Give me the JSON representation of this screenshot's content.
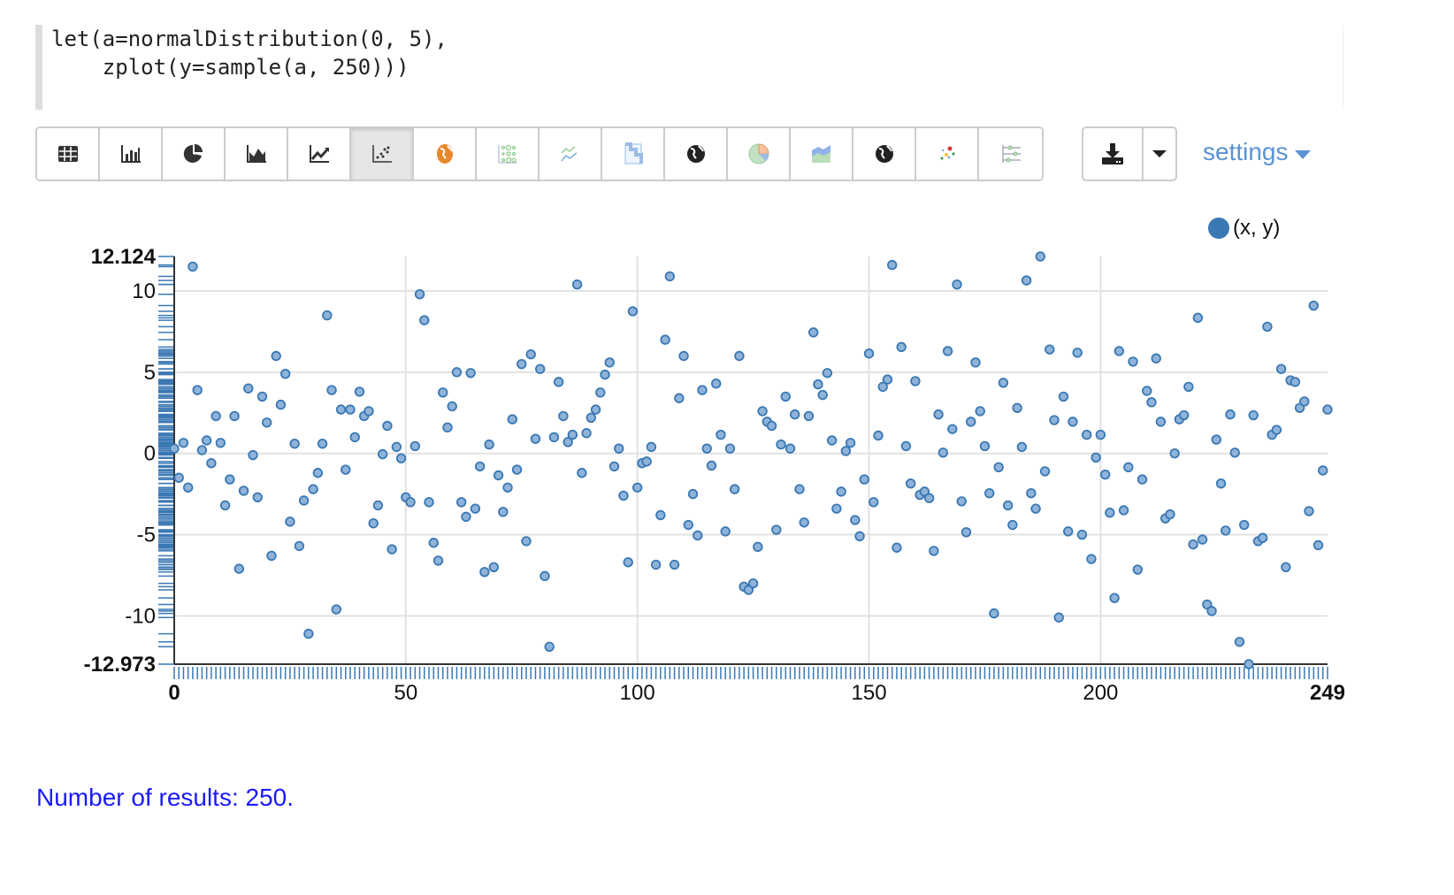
{
  "editor": {
    "code_lines": [
      "let(a=normalDistribution(0, 5),",
      "    zplot(y=sample(a, 250)))"
    ]
  },
  "toolbar": {
    "buttons": [
      {
        "icon": "table-icon"
      },
      {
        "icon": "bar-chart-icon"
      },
      {
        "icon": "pie-chart-icon"
      },
      {
        "icon": "area-chart-icon"
      },
      {
        "icon": "line-chart-icon"
      },
      {
        "icon": "scatter-chart-icon",
        "active": true
      },
      {
        "icon": "globe-orange-icon"
      },
      {
        "icon": "bubble-grid-icon"
      },
      {
        "icon": "multi-line-icon"
      },
      {
        "icon": "heatmap-icon"
      },
      {
        "icon": "globe-icon"
      },
      {
        "icon": "pie-color-icon"
      },
      {
        "icon": "stacked-area-icon"
      },
      {
        "icon": "globe-dark-icon"
      },
      {
        "icon": "color-dots-icon"
      },
      {
        "icon": "sliders-icon"
      }
    ],
    "download_icon": "download-icon",
    "dropdown_icon": "caret-down-icon",
    "settings_label": "settings"
  },
  "colors": {
    "accent": "#5b93d3",
    "point_fill": "#8fb3d9",
    "point_stroke": "#3a78b4",
    "results_text": "#1a1aff"
  },
  "chart_data": {
    "type": "scatter",
    "legend": {
      "entries": [
        "(x, y)"
      ],
      "placement": "top-right"
    },
    "xlim": [
      0,
      249
    ],
    "ylim": [
      -12.973,
      12.124
    ],
    "x_ticks": [
      "0",
      "50",
      "100",
      "150",
      "200",
      "249"
    ],
    "y_ticks": [
      "12.124",
      "10",
      "5",
      "0",
      "-5",
      "-10",
      "-12.973"
    ],
    "grid": true,
    "rug": true,
    "series": [
      {
        "name": "(x, y)",
        "y": [
          0.3,
          -1.5,
          0.65,
          -2.1,
          11.5,
          3.9,
          0.2,
          0.8,
          -0.6,
          2.3,
          0.65,
          -3.2,
          -1.6,
          2.3,
          -7.1,
          -2.3,
          4.0,
          -0.1,
          -2.7,
          3.5,
          1.9,
          -6.3,
          6.0,
          3.0,
          4.9,
          -4.2,
          0.6,
          -5.7,
          -2.9,
          -11.1,
          -2.2,
          -1.2,
          0.6,
          8.5,
          3.9,
          -9.6,
          2.7,
          -1.0,
          2.7,
          1.0,
          3.8,
          2.3,
          2.6,
          -4.3,
          -3.2,
          -0.05,
          1.7,
          -5.9,
          0.4,
          -0.3,
          -2.7,
          -3.0,
          0.45,
          9.8,
          8.2,
          -3.0,
          -5.5,
          -6.6,
          3.75,
          1.6,
          2.9,
          5.0,
          -3.0,
          -3.9,
          4.95,
          -3.4,
          -0.8,
          -7.3,
          0.55,
          -7.0,
          -1.35,
          -3.6,
          -2.1,
          2.1,
          -1.0,
          5.5,
          -5.4,
          6.1,
          0.9,
          5.2,
          -7.55,
          -11.9,
          1.0,
          4.4,
          2.3,
          0.7,
          1.15,
          10.4,
          -1.2,
          1.25,
          2.2,
          2.7,
          3.75,
          4.85,
          5.6,
          -0.8,
          0.3,
          -2.6,
          -6.7,
          8.75,
          -2.1,
          -0.6,
          -0.5,
          0.4,
          -6.85,
          -3.8,
          7.0,
          10.9,
          -6.85,
          3.4,
          6.0,
          -4.4,
          -2.5,
          -5.05,
          3.9,
          0.3,
          -0.75,
          4.3,
          1.15,
          -4.8,
          0.3,
          -2.2,
          6.0,
          -8.2,
          -8.4,
          -8.0,
          -5.75,
          2.6,
          1.95,
          1.7,
          -4.7,
          0.55,
          3.5,
          0.3,
          2.4,
          -2.2,
          -4.25,
          2.3,
          7.45,
          4.25,
          3.6,
          4.95,
          0.8,
          -3.4,
          -2.35,
          0.15,
          0.65,
          -4.1,
          -5.1,
          -1.6,
          6.15,
          -3.0,
          1.1,
          4.1,
          4.55,
          11.6,
          -5.8,
          6.55,
          0.45,
          -1.85,
          4.45,
          -2.55,
          -2.35,
          -2.75,
          -6.0,
          2.4,
          0.05,
          6.3,
          1.5,
          10.4,
          -2.95,
          -4.85,
          1.95,
          5.6,
          2.6,
          0.45,
          -2.45,
          -9.85,
          -0.85,
          4.35,
          -3.2,
          -4.4,
          2.8,
          0.4,
          10.65,
          -2.45,
          -3.4,
          12.124,
          -1.1,
          6.4,
          2.05,
          -10.1,
          3.5,
          -4.8,
          1.95,
          6.2,
          -5.0,
          1.15,
          -6.5,
          -0.25,
          1.15,
          -1.3,
          -3.65,
          -8.9,
          6.3,
          -3.5,
          -0.85,
          5.65,
          -7.15,
          -1.6,
          3.85,
          3.15,
          5.85,
          1.95,
          -4.0,
          -3.75,
          0.0,
          2.1,
          2.35,
          4.1,
          -5.6,
          8.35,
          -5.3,
          -9.3,
          -9.7,
          0.85,
          -1.85,
          -4.75,
          2.4,
          0.05,
          -11.6,
          -4.4,
          -12.973,
          2.35,
          -5.4,
          -5.2,
          7.8,
          1.15,
          1.45,
          5.2,
          -7.0,
          4.5,
          4.4,
          2.8,
          3.2,
          -3.55,
          9.1,
          -5.65,
          -1.05,
          2.7
        ]
      }
    ]
  },
  "footer": {
    "results_text": "Number of results: 250."
  }
}
